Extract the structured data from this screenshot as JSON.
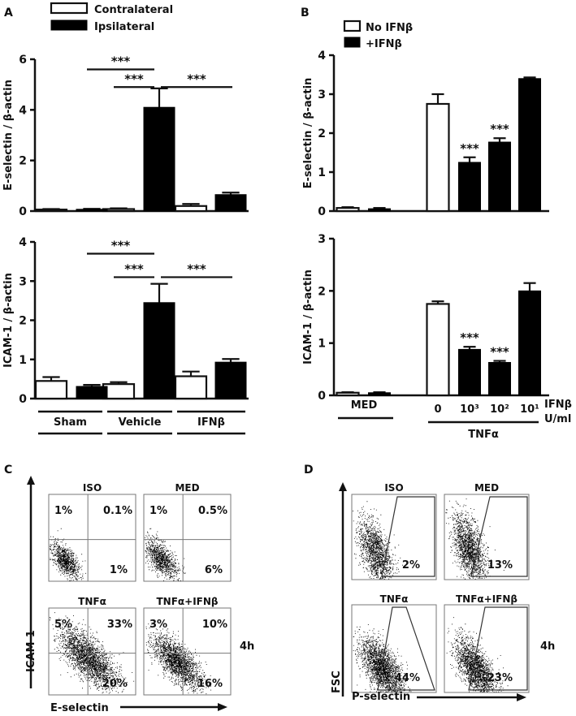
{
  "chart_data": [
    {
      "id": "A-top",
      "type": "bar",
      "panel_letter": "A",
      "ylabel": "E-selectin / β-actin",
      "ylim": [
        0,
        6
      ],
      "yticks": [
        "0",
        "2",
        "4",
        "6"
      ],
      "legend": [
        {
          "name": "Contralateral",
          "style": "open"
        },
        {
          "name": "Ipsilateral",
          "style": "filled"
        }
      ],
      "series": [
        {
          "name": "Contralateral",
          "style": "open",
          "values": [
            0.06,
            0.08,
            0.2
          ],
          "errors": [
            0.02,
            0.03,
            0.08
          ]
        },
        {
          "name": "Ipsilateral",
          "style": "filled",
          "values": [
            0.07,
            4.1,
            0.65
          ],
          "errors": [
            0.02,
            0.75,
            0.08
          ]
        }
      ],
      "categories": [
        "Sham",
        "Vehicle",
        "IFNβ"
      ],
      "significance": [
        {
          "label": "***",
          "from": "Sham-Ipsilateral",
          "to": "Vehicle-Ipsilateral",
          "y": 5.6
        },
        {
          "label": "***",
          "from": "Vehicle-Contralateral",
          "to": "Vehicle-Ipsilateral",
          "y": 4.9
        },
        {
          "label": "***",
          "from": "Vehicle-Ipsilateral",
          "to": "IFNβ-Ipsilateral",
          "y": 4.9
        }
      ]
    },
    {
      "id": "A-bottom",
      "type": "bar",
      "ylabel": "ICAM-1 / β-actin",
      "ylim": [
        0,
        4
      ],
      "yticks": [
        "0",
        "1",
        "2",
        "3",
        "4"
      ],
      "series": [
        {
          "name": "Contralateral",
          "style": "open",
          "values": [
            0.45,
            0.37,
            0.57
          ],
          "errors": [
            0.1,
            0.05,
            0.12
          ]
        },
        {
          "name": "Ipsilateral",
          "style": "filled",
          "values": [
            0.31,
            2.45,
            0.93
          ],
          "errors": [
            0.04,
            0.48,
            0.08
          ]
        }
      ],
      "categories": [
        "Sham",
        "Vehicle",
        "IFNβ"
      ],
      "significance": [
        {
          "label": "***",
          "from": "Sham-Ipsilateral",
          "to": "Vehicle-Ipsilateral",
          "y": 3.7
        },
        {
          "label": "***",
          "from": "Vehicle-Contralateral",
          "to": "Vehicle-Ipsilateral",
          "y": 3.1
        },
        {
          "label": "***",
          "from": "Vehicle-Ipsilateral",
          "to": "IFNβ-Ipsilateral",
          "y": 3.1
        }
      ]
    },
    {
      "id": "B-top",
      "type": "bar",
      "panel_letter": "B",
      "ylabel": "E-selectin / β-actin",
      "ylim": [
        0,
        4
      ],
      "yticks": [
        "0",
        "1",
        "2",
        "3",
        "4"
      ],
      "legend": [
        {
          "name": "No IFNβ",
          "style": "open"
        },
        {
          "name": "+IFNβ",
          "style": "filled"
        }
      ],
      "bars": [
        {
          "group": "MED",
          "style": "open",
          "value": 0.08,
          "error": 0.02,
          "sig": ""
        },
        {
          "group": "MED",
          "style": "filled",
          "value": 0.06,
          "error": 0.02,
          "sig": ""
        },
        {
          "group": "TNFα 0",
          "style": "open",
          "value": 2.75,
          "error": 0.25,
          "sig": ""
        },
        {
          "group": "TNFα 10³",
          "style": "filled",
          "value": 1.25,
          "error": 0.13,
          "sig": "***"
        },
        {
          "group": "TNFα 10²",
          "style": "filled",
          "value": 1.77,
          "error": 0.1,
          "sig": "***"
        },
        {
          "group": "TNFα 10¹",
          "style": "filled",
          "value": 3.4,
          "error": 0.03,
          "sig": ""
        }
      ]
    },
    {
      "id": "B-bottom",
      "type": "bar",
      "ylabel": "ICAM-1 / β-actin",
      "ylim": [
        0,
        3
      ],
      "yticks": [
        "0",
        "1",
        "2",
        "3"
      ],
      "bars": [
        {
          "group": "MED",
          "style": "open",
          "value": 0.05,
          "error": 0.01,
          "sig": ""
        },
        {
          "group": "MED",
          "style": "filled",
          "value": 0.05,
          "error": 0.01,
          "sig": ""
        },
        {
          "group": "TNFα 0",
          "style": "open",
          "value": 1.75,
          "error": 0.05,
          "sig": ""
        },
        {
          "group": "TNFα 10³",
          "style": "filled",
          "value": 0.88,
          "error": 0.05,
          "sig": "***"
        },
        {
          "group": "TNFα 10²",
          "style": "filled",
          "value": 0.63,
          "error": 0.03,
          "sig": "***"
        },
        {
          "group": "TNFα 10¹",
          "style": "filled",
          "value": 2.0,
          "error": 0.15,
          "sig": ""
        }
      ],
      "xlabels": {
        "med": "MED",
        "doses": [
          "0",
          "10³",
          "10²",
          "10¹"
        ],
        "unit_line1": "IFNβ",
        "unit_line2": "U/ml",
        "treatment": "TNFα"
      }
    },
    {
      "id": "C",
      "type": "scatter",
      "panel_letter": "C",
      "xlabel": "E-selectin",
      "ylabel": "ICAM-1",
      "time_label": "4h",
      "plots": [
        {
          "title": "ISO",
          "quadrants": {
            "ul": "1%",
            "ur": "0.1%",
            "lr": "1%"
          }
        },
        {
          "title": "MED",
          "quadrants": {
            "ul": "1%",
            "ur": "0.5%",
            "lr": "6%"
          }
        },
        {
          "title": "TNFα",
          "quadrants": {
            "ul": "5%",
            "ur": "33%",
            "lr": "20%"
          }
        },
        {
          "title": "TNFα+IFNβ",
          "quadrants": {
            "ul": "3%",
            "ur": "10%",
            "lr": "16%"
          }
        }
      ]
    },
    {
      "id": "D",
      "type": "scatter",
      "panel_letter": "D",
      "xlabel": "P-selectin",
      "ylabel": "FSC",
      "time_label": "4h",
      "plots": [
        {
          "title": "ISO",
          "gate_pct": "2%"
        },
        {
          "title": "MED",
          "gate_pct": "13%"
        },
        {
          "title": "TNFα",
          "gate_pct": "44%"
        },
        {
          "title": "TNFα+IFNβ",
          "gate_pct": "23%"
        }
      ]
    }
  ],
  "labels": {
    "groups_a": [
      "Sham",
      "Vehicle",
      "IFNβ"
    ],
    "sig": "***"
  }
}
